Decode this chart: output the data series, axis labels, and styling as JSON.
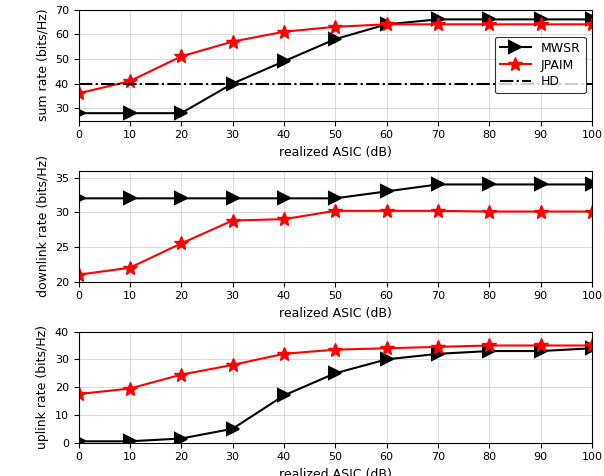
{
  "x": [
    0,
    10,
    20,
    30,
    40,
    50,
    60,
    70,
    80,
    90,
    100
  ],
  "sum_mwsr": [
    28,
    28,
    28,
    40,
    49,
    58,
    64,
    66,
    66,
    66,
    66
  ],
  "sum_jpaim": [
    36,
    41,
    51,
    57,
    61,
    63,
    64,
    64,
    64,
    64,
    64
  ],
  "sum_hd": 40,
  "dl_mwsr": [
    32,
    32,
    32,
    32,
    32,
    32,
    33,
    34,
    34,
    34,
    34
  ],
  "dl_jpaim": [
    21,
    22,
    25.5,
    28.8,
    29,
    30.2,
    30.2,
    30.2,
    30.1,
    30.1,
    30.1
  ],
  "ul_mwsr": [
    0.5,
    0.5,
    1.5,
    5,
    17,
    25,
    30,
    32,
    33,
    33,
    34
  ],
  "ul_jpaim": [
    17.5,
    19.5,
    24.5,
    28,
    32,
    33.5,
    34,
    34.5,
    35,
    35,
    35
  ],
  "mwsr_color": "#000000",
  "jpaim_color": "#ff0000",
  "hd_color": "#000000",
  "xlabel": "realized ASIC (dB)",
  "ylabel_sum": "sum rate (bits/Hz)",
  "ylabel_dl": "downlink rate (bits/Hz)",
  "ylabel_ul": "uplink rate (bits/Hz)",
  "xlim": [
    0,
    100
  ],
  "sum_ylim": [
    25,
    70
  ],
  "dl_ylim": [
    20,
    36
  ],
  "ul_ylim": [
    0,
    40
  ],
  "sum_yticks": [
    30,
    40,
    50,
    60,
    70
  ],
  "dl_yticks": [
    20,
    25,
    30,
    35
  ],
  "ul_yticks": [
    0,
    10,
    20,
    30,
    40
  ],
  "xticks": [
    0,
    10,
    20,
    30,
    40,
    50,
    60,
    70,
    80,
    90,
    100
  ],
  "legend_labels": [
    "MWSR",
    "JPAIM",
    "HD"
  ],
  "legend_loc": "center right",
  "figsize": [
    6.04,
    4.76
  ],
  "dpi": 100
}
